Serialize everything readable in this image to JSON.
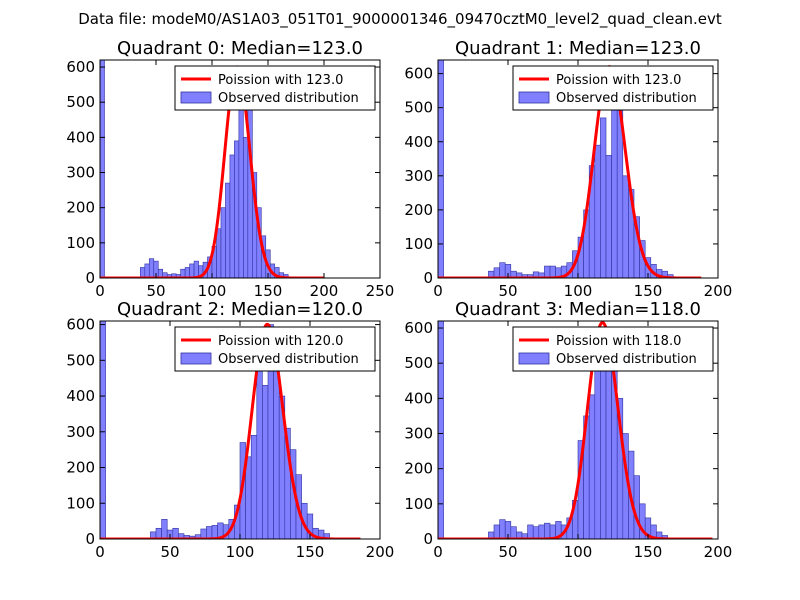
{
  "suptitle": "Data file: modeM0/AS1A03_051T01_9000001346_09470cztM0_level2_quad_clean.evt",
  "colors": {
    "bar": "#8080ff",
    "bar_edge": "#3030a0",
    "poisson": "#ff0000"
  },
  "chart_data": [
    {
      "type": "bar",
      "title": "Quadrant 0: Median=123.0",
      "xlim": [
        0,
        250
      ],
      "ylim": [
        0,
        620
      ],
      "xticks": [
        "0",
        "50",
        "100",
        "150",
        "200",
        "250"
      ],
      "yticks": [
        "0",
        "100",
        "200",
        "300",
        "400",
        "500",
        "600"
      ],
      "bin_width": 4,
      "bins": [
        [
          0,
          620
        ],
        [
          36,
          30
        ],
        [
          40,
          40
        ],
        [
          44,
          55
        ],
        [
          48,
          48
        ],
        [
          52,
          25
        ],
        [
          56,
          15
        ],
        [
          60,
          10
        ],
        [
          64,
          12
        ],
        [
          68,
          10
        ],
        [
          72,
          25
        ],
        [
          76,
          30
        ],
        [
          80,
          40
        ],
        [
          84,
          48
        ],
        [
          88,
          35
        ],
        [
          92,
          45
        ],
        [
          96,
          60
        ],
        [
          100,
          90
        ],
        [
          104,
          140
        ],
        [
          108,
          200
        ],
        [
          112,
          270
        ],
        [
          116,
          350
        ],
        [
          120,
          390
        ],
        [
          124,
          600
        ],
        [
          128,
          400
        ],
        [
          132,
          500
        ],
        [
          136,
          300
        ],
        [
          140,
          200
        ],
        [
          144,
          120
        ],
        [
          148,
          80
        ],
        [
          152,
          40
        ],
        [
          156,
          30
        ],
        [
          160,
          15
        ],
        [
          164,
          10
        ]
      ],
      "poisson": {
        "label": "Poission with 123.0",
        "mean": 123.0,
        "peak": 600,
        "x_end": 200
      },
      "hist_label": "Observed distribution"
    },
    {
      "type": "bar",
      "title": "Quadrant 1: Median=123.0",
      "xlim": [
        0,
        200
      ],
      "ylim": [
        0,
        640
      ],
      "xticks": [
        "0",
        "50",
        "100",
        "150",
        "200"
      ],
      "yticks": [
        "0",
        "100",
        "200",
        "300",
        "400",
        "500",
        "600"
      ],
      "bin_width": 4,
      "bins": [
        [
          0,
          640
        ],
        [
          36,
          20
        ],
        [
          40,
          30
        ],
        [
          44,
          45
        ],
        [
          48,
          40
        ],
        [
          52,
          20
        ],
        [
          56,
          15
        ],
        [
          60,
          10
        ],
        [
          64,
          10
        ],
        [
          68,
          18
        ],
        [
          72,
          15
        ],
        [
          76,
          35
        ],
        [
          80,
          35
        ],
        [
          84,
          30
        ],
        [
          88,
          35
        ],
        [
          92,
          45
        ],
        [
          96,
          80
        ],
        [
          100,
          120
        ],
        [
          104,
          200
        ],
        [
          108,
          330
        ],
        [
          112,
          390
        ],
        [
          116,
          470
        ],
        [
          120,
          360
        ],
        [
          124,
          600
        ],
        [
          128,
          540
        ],
        [
          132,
          300
        ],
        [
          136,
          260
        ],
        [
          140,
          180
        ],
        [
          144,
          110
        ],
        [
          148,
          60
        ],
        [
          152,
          40
        ],
        [
          156,
          25
        ],
        [
          160,
          20
        ],
        [
          164,
          10
        ]
      ],
      "poisson": {
        "label": "Poission with 123.0",
        "mean": 123.0,
        "peak": 620,
        "x_end": 188
      },
      "hist_label": "Observed distribution"
    },
    {
      "type": "bar",
      "title": "Quadrant 2: Median=120.0",
      "xlim": [
        0,
        200
      ],
      "ylim": [
        0,
        610
      ],
      "xticks": [
        "0",
        "50",
        "100",
        "150",
        "200"
      ],
      "yticks": [
        "0",
        "100",
        "200",
        "300",
        "400",
        "500",
        "600"
      ],
      "bin_width": 4,
      "bins": [
        [
          0,
          610
        ],
        [
          36,
          20
        ],
        [
          40,
          30
        ],
        [
          44,
          55
        ],
        [
          48,
          25
        ],
        [
          52,
          30
        ],
        [
          56,
          15
        ],
        [
          60,
          10
        ],
        [
          64,
          8
        ],
        [
          68,
          12
        ],
        [
          72,
          28
        ],
        [
          76,
          35
        ],
        [
          80,
          38
        ],
        [
          84,
          45
        ],
        [
          88,
          40
        ],
        [
          92,
          55
        ],
        [
          96,
          95
        ],
        [
          100,
          270
        ],
        [
          104,
          230
        ],
        [
          108,
          290
        ],
        [
          112,
          470
        ],
        [
          116,
          430
        ],
        [
          120,
          600
        ],
        [
          124,
          540
        ],
        [
          128,
          400
        ],
        [
          132,
          310
        ],
        [
          136,
          250
        ],
        [
          140,
          180
        ],
        [
          144,
          100
        ],
        [
          148,
          70
        ],
        [
          152,
          30
        ],
        [
          156,
          25
        ],
        [
          160,
          15
        ]
      ],
      "poisson": {
        "label": "Poission with 120.0",
        "mean": 120.0,
        "peak": 600,
        "x_end": 186
      },
      "hist_label": "Observed distribution"
    },
    {
      "type": "bar",
      "title": "Quadrant 3: Median=118.0",
      "xlim": [
        0,
        200
      ],
      "ylim": [
        0,
        620
      ],
      "xticks": [
        "0",
        "50",
        "100",
        "150",
        "200"
      ],
      "yticks": [
        "0",
        "100",
        "200",
        "300",
        "400",
        "500",
        "600"
      ],
      "bin_width": 4,
      "bins": [
        [
          0,
          620
        ],
        [
          36,
          20
        ],
        [
          40,
          40
        ],
        [
          44,
          55
        ],
        [
          48,
          50
        ],
        [
          52,
          35
        ],
        [
          56,
          20
        ],
        [
          60,
          15
        ],
        [
          64,
          40
        ],
        [
          68,
          35
        ],
        [
          72,
          40
        ],
        [
          76,
          45
        ],
        [
          80,
          40
        ],
        [
          84,
          50
        ],
        [
          88,
          40
        ],
        [
          92,
          60
        ],
        [
          96,
          110
        ],
        [
          100,
          280
        ],
        [
          104,
          350
        ],
        [
          108,
          410
        ],
        [
          112,
          590
        ],
        [
          116,
          480
        ],
        [
          120,
          510
        ],
        [
          124,
          550
        ],
        [
          128,
          400
        ],
        [
          132,
          300
        ],
        [
          136,
          250
        ],
        [
          140,
          180
        ],
        [
          144,
          100
        ],
        [
          148,
          60
        ],
        [
          152,
          40
        ],
        [
          156,
          20
        ],
        [
          160,
          10
        ]
      ],
      "poisson": {
        "label": "Poission with 118.0",
        "mean": 118.0,
        "peak": 615,
        "x_end": 196
      },
      "hist_label": "Observed distribution"
    }
  ]
}
